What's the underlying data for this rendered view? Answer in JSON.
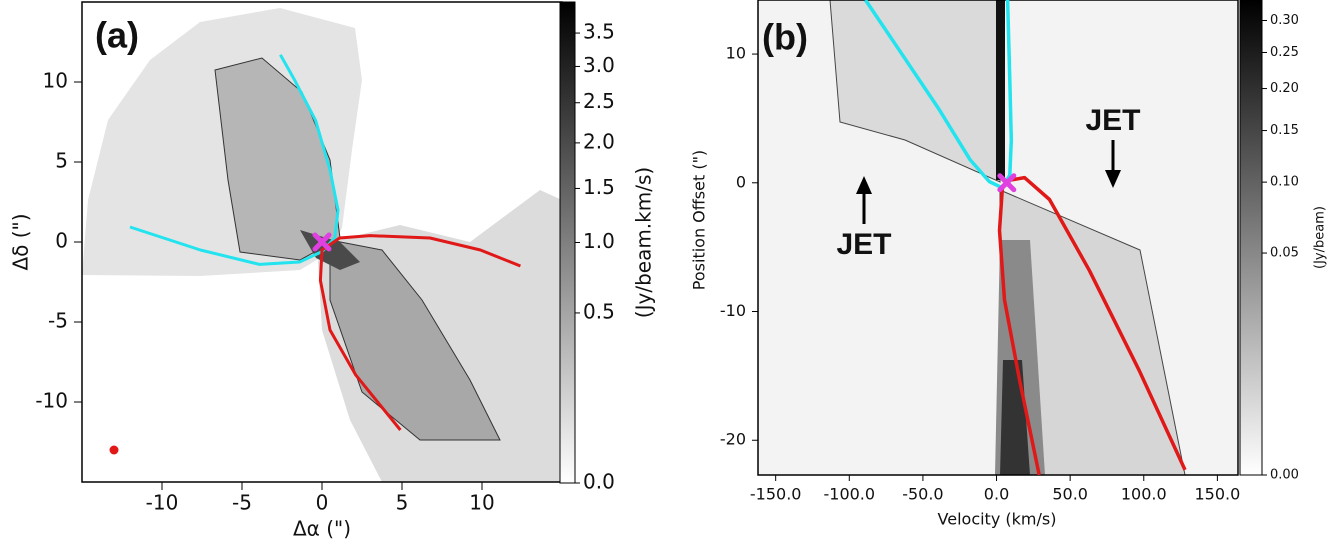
{
  "chart_data": [
    {
      "type": "line",
      "panel_label": "(a)",
      "xlabel": "Δα (\")",
      "ylabel": "Δδ (\")",
      "xlim": [
        -15,
        15
      ],
      "ylim": [
        -15,
        15
      ],
      "xticks": [
        -10,
        -5,
        0,
        5,
        10
      ],
      "yticks": [
        -10,
        -5,
        0,
        5,
        10
      ],
      "series": [
        {
          "color": "#22e3ee",
          "x": [
            -12,
            -7.6,
            -3.9,
            -1.4,
            0,
            0.8,
            1,
            0.5,
            -0.4,
            -1.7,
            -2.6
          ],
          "values": [
            0.94,
            -0.5,
            -1.4,
            -1.25,
            -0.6,
            0.25,
            2,
            4.5,
            7.6,
            10.1,
            11.7
          ]
        },
        {
          "color": "#e01818",
          "x": [
            12.4,
            9.9,
            6.75,
            3,
            1.1,
            0,
            -0.1,
            0.5,
            2.1,
            4.9
          ],
          "values": [
            -1.5,
            -0.5,
            0.25,
            0.4,
            0.25,
            -0.5,
            -2.4,
            -5.5,
            -8.3,
            -11.75
          ]
        }
      ],
      "points": [
        {
          "x": 0,
          "y": 0,
          "color": "#e040e0",
          "marker": "x"
        },
        {
          "x": -13,
          "y": -13,
          "color": "#e01818",
          "marker": "o"
        }
      ],
      "colorbar": {
        "label": "(Jy/beam.km/s)",
        "lim": [
          0,
          4
        ],
        "scale": "power",
        "exponent": 0.5,
        "ticks": [
          {
            "value": 0,
            "label": "0.0"
          },
          {
            "value": 0.5,
            "label": "0.5"
          },
          {
            "value": 1,
            "label": "1.0"
          },
          {
            "value": 1.5,
            "label": "1.5"
          },
          {
            "value": 2,
            "label": "2.0"
          },
          {
            "value": 2.5,
            "label": "2.5"
          },
          {
            "value": 3,
            "label": "3.0"
          },
          {
            "value": 3.5,
            "label": "3.5"
          }
        ]
      }
    },
    {
      "type": "line",
      "panel_label": "(b)",
      "xlabel": "Velocity (km/s)",
      "ylabel": "Position Offset (\")",
      "xlim": [
        -162,
        164
      ],
      "ylim": [
        -22.7,
        14.2
      ],
      "xticks": [
        {
          "value": -150,
          "label": "-150.0"
        },
        {
          "value": -100,
          "label": "-100.0"
        },
        {
          "value": -50,
          "label": "-50.0"
        },
        {
          "value": 0,
          "label": "0.0"
        },
        {
          "value": 50,
          "label": "50.0"
        },
        {
          "value": 100,
          "label": "100.0"
        },
        {
          "value": 150,
          "label": "150.0"
        }
      ],
      "yticks": [
        -20,
        -10,
        0,
        10
      ],
      "series": [
        {
          "color": "#22e3ee",
          "x": [
            -89,
            -66,
            -39,
            -18,
            -5,
            4,
            9,
            10,
            9,
            7.5
          ],
          "values": [
            14.2,
            10.3,
            5.7,
            1.8,
            0.1,
            -0.4,
            0.6,
            3.3,
            8,
            14.2
          ]
        },
        {
          "color": "#e01818",
          "x": [
            29,
            15.6,
            5.4,
            2,
            4,
            9,
            19,
            36,
            63,
            97,
            128
          ],
          "values": [
            -22.7,
            -15.3,
            -9.1,
            -3.7,
            -0.4,
            0.2,
            0.4,
            -1.3,
            -6.8,
            -14.6,
            -22.3
          ]
        }
      ],
      "points": [
        {
          "x": 7,
          "y": 0,
          "color": "#e040e0",
          "marker": "x"
        }
      ],
      "annotations": [
        {
          "text": "JET"
        },
        {
          "text": "JET"
        }
      ],
      "colorbar": {
        "label": "(Jy/beam)",
        "lim": [
          0,
          0.335
        ],
        "scale": "power",
        "exponent": 0.4,
        "ticks": [
          {
            "value": 0,
            "label": "0.00"
          },
          {
            "value": 0.05,
            "label": "0.05"
          },
          {
            "value": 0.1,
            "label": "0.10"
          },
          {
            "value": 0.15,
            "label": "0.15"
          },
          {
            "value": 0.2,
            "label": "0.20"
          },
          {
            "value": 0.25,
            "label": "0.25"
          },
          {
            "value": 0.3,
            "label": "0.30"
          }
        ]
      }
    }
  ]
}
